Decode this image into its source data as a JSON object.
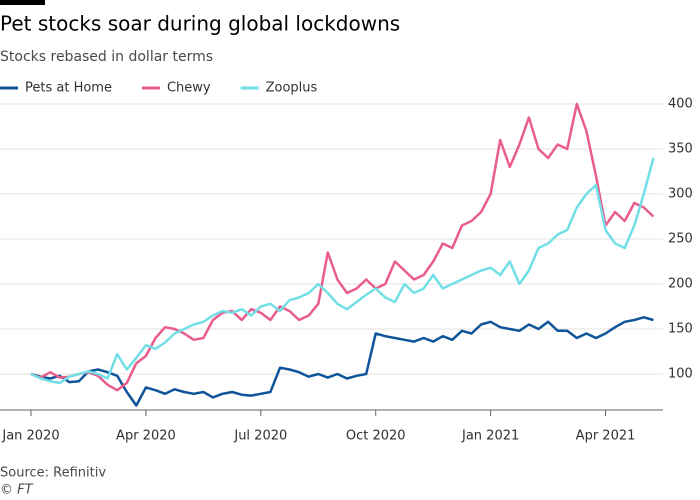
{
  "chart_data": {
    "type": "line",
    "title": "Pet stocks soar during global lockdowns",
    "subtitle": "Stocks rebased in dollar terms",
    "source": "Source: Refinitiv",
    "credit": "© FT",
    "x": [
      0,
      0.25,
      0.5,
      0.75,
      1,
      1.25,
      1.5,
      1.75,
      2,
      2.25,
      2.5,
      2.75,
      3,
      3.25,
      3.5,
      3.75,
      4,
      4.25,
      4.5,
      4.75,
      5,
      5.25,
      5.5,
      5.75,
      6,
      6.25,
      6.5,
      6.75,
      7,
      7.25,
      7.5,
      7.75,
      8,
      8.25,
      8.5,
      8.75,
      9,
      9.25,
      9.5,
      9.75,
      10,
      10.25,
      10.5,
      10.75,
      11,
      11.25,
      11.5,
      11.75,
      12,
      12.25,
      12.5,
      12.75,
      13,
      13.25,
      13.5,
      13.75,
      14,
      14.25,
      14.5,
      14.75,
      15,
      15.25,
      15.5,
      15.75,
      16,
      16.25
    ],
    "series": [
      {
        "name": "Pets at Home",
        "color": "#0f5499",
        "values": [
          100,
          97,
          95,
          98,
          91,
          92,
          103,
          105,
          102,
          98,
          80,
          65,
          85,
          82,
          78,
          83,
          80,
          78,
          80,
          74,
          78,
          80,
          77,
          76,
          78,
          80,
          107,
          105,
          102,
          97,
          100,
          96,
          100,
          95,
          98,
          100,
          145,
          142,
          140,
          138,
          136,
          140,
          136,
          142,
          138,
          148,
          145,
          155,
          158,
          152,
          150,
          148,
          155,
          150,
          158,
          148,
          148,
          140,
          145,
          140,
          145,
          152,
          158,
          160,
          163,
          160
        ]
      },
      {
        "name": "Chewy",
        "color": "#e95d8c",
        "values": [
          100,
          96,
          102,
          96,
          97,
          100,
          102,
          98,
          88,
          82,
          90,
          112,
          120,
          140,
          152,
          150,
          145,
          138,
          140,
          160,
          168,
          170,
          160,
          172,
          168,
          160,
          175,
          170,
          160,
          165,
          178,
          235,
          205,
          190,
          195,
          205,
          195,
          200,
          225,
          215,
          205,
          210,
          225,
          245,
          240,
          265,
          270,
          280,
          300,
          360,
          330,
          355,
          385,
          350,
          340,
          355,
          350,
          400,
          370,
          320,
          265,
          280,
          270,
          290,
          285,
          275
        ]
      },
      {
        "name": "Zooplus",
        "color": "#72dfe6",
        "values": [
          100,
          95,
          92,
          90,
          97,
          100,
          103,
          100,
          95,
          122,
          105,
          118,
          132,
          128,
          135,
          145,
          150,
          155,
          158,
          165,
          170,
          168,
          172,
          165,
          175,
          178,
          170,
          182,
          185,
          190,
          200,
          190,
          178,
          172,
          180,
          188,
          195,
          185,
          180,
          200,
          190,
          195,
          210,
          195,
          200,
          205,
          210,
          215,
          218,
          210,
          225,
          200,
          215,
          240,
          245,
          255,
          260,
          285,
          300,
          310,
          260,
          245,
          240,
          265,
          300,
          340
        ]
      }
    ],
    "xlim": [
      0,
      16.5
    ],
    "xticks": [
      {
        "value": 0,
        "label": "Jan 2020"
      },
      {
        "value": 3,
        "label": "Apr 2020"
      },
      {
        "value": 6,
        "label": "Jul 2020"
      },
      {
        "value": 9,
        "label": "Oct 2020"
      },
      {
        "value": 12,
        "label": "Jan 2021"
      },
      {
        "value": 15,
        "label": "Apr 2021"
      }
    ],
    "ylim": [
      60,
      410
    ],
    "yticks": [
      100,
      150,
      200,
      250,
      300,
      350,
      400
    ],
    "grid": true
  }
}
